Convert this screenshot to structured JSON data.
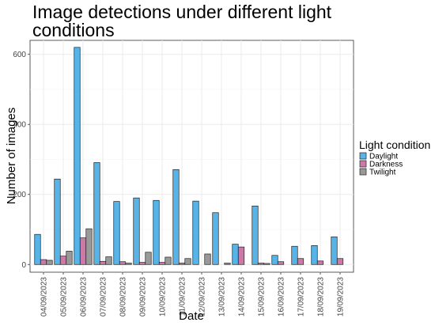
{
  "chart_data": {
    "type": "bar",
    "title": "Image detections under different light conditions",
    "xlabel": "Date",
    "ylabel": "Number of images",
    "ylim": [
      -22,
      640
    ],
    "yticks": [
      0,
      200,
      400,
      600
    ],
    "grid": true,
    "legend": {
      "title": "Light condition",
      "position": "right"
    },
    "categories": [
      "04/09/2023",
      "05/09/2023",
      "06/09/2023",
      "07/09/2023",
      "08/09/2023",
      "09/09/2023",
      "10/09/2023",
      "11/09/2023",
      "12/09/2023",
      "13/09/2023",
      "14/09/2023",
      "15/09/2023",
      "16/09/2023",
      "17/09/2023",
      "18/09/2023",
      "19/09/2023"
    ],
    "series": [
      {
        "name": "Daylight",
        "color": "#56B4E9",
        "values": [
          86,
          244,
          620,
          291,
          180,
          190,
          183,
          271,
          181,
          148,
          58,
          167,
          26,
          52,
          54,
          79
        ]
      },
      {
        "name": "Darkness",
        "color": "#CC79A7",
        "values": [
          14,
          24,
          76,
          9,
          8,
          6,
          6,
          4,
          null,
          null,
          50,
          4,
          8,
          17,
          10,
          17
        ]
      },
      {
        "name": "Twilight",
        "color": "#999999",
        "values": [
          12,
          38,
          102,
          22,
          4,
          35,
          21,
          17,
          30,
          4,
          null,
          3,
          null,
          null,
          null,
          null
        ]
      }
    ]
  }
}
